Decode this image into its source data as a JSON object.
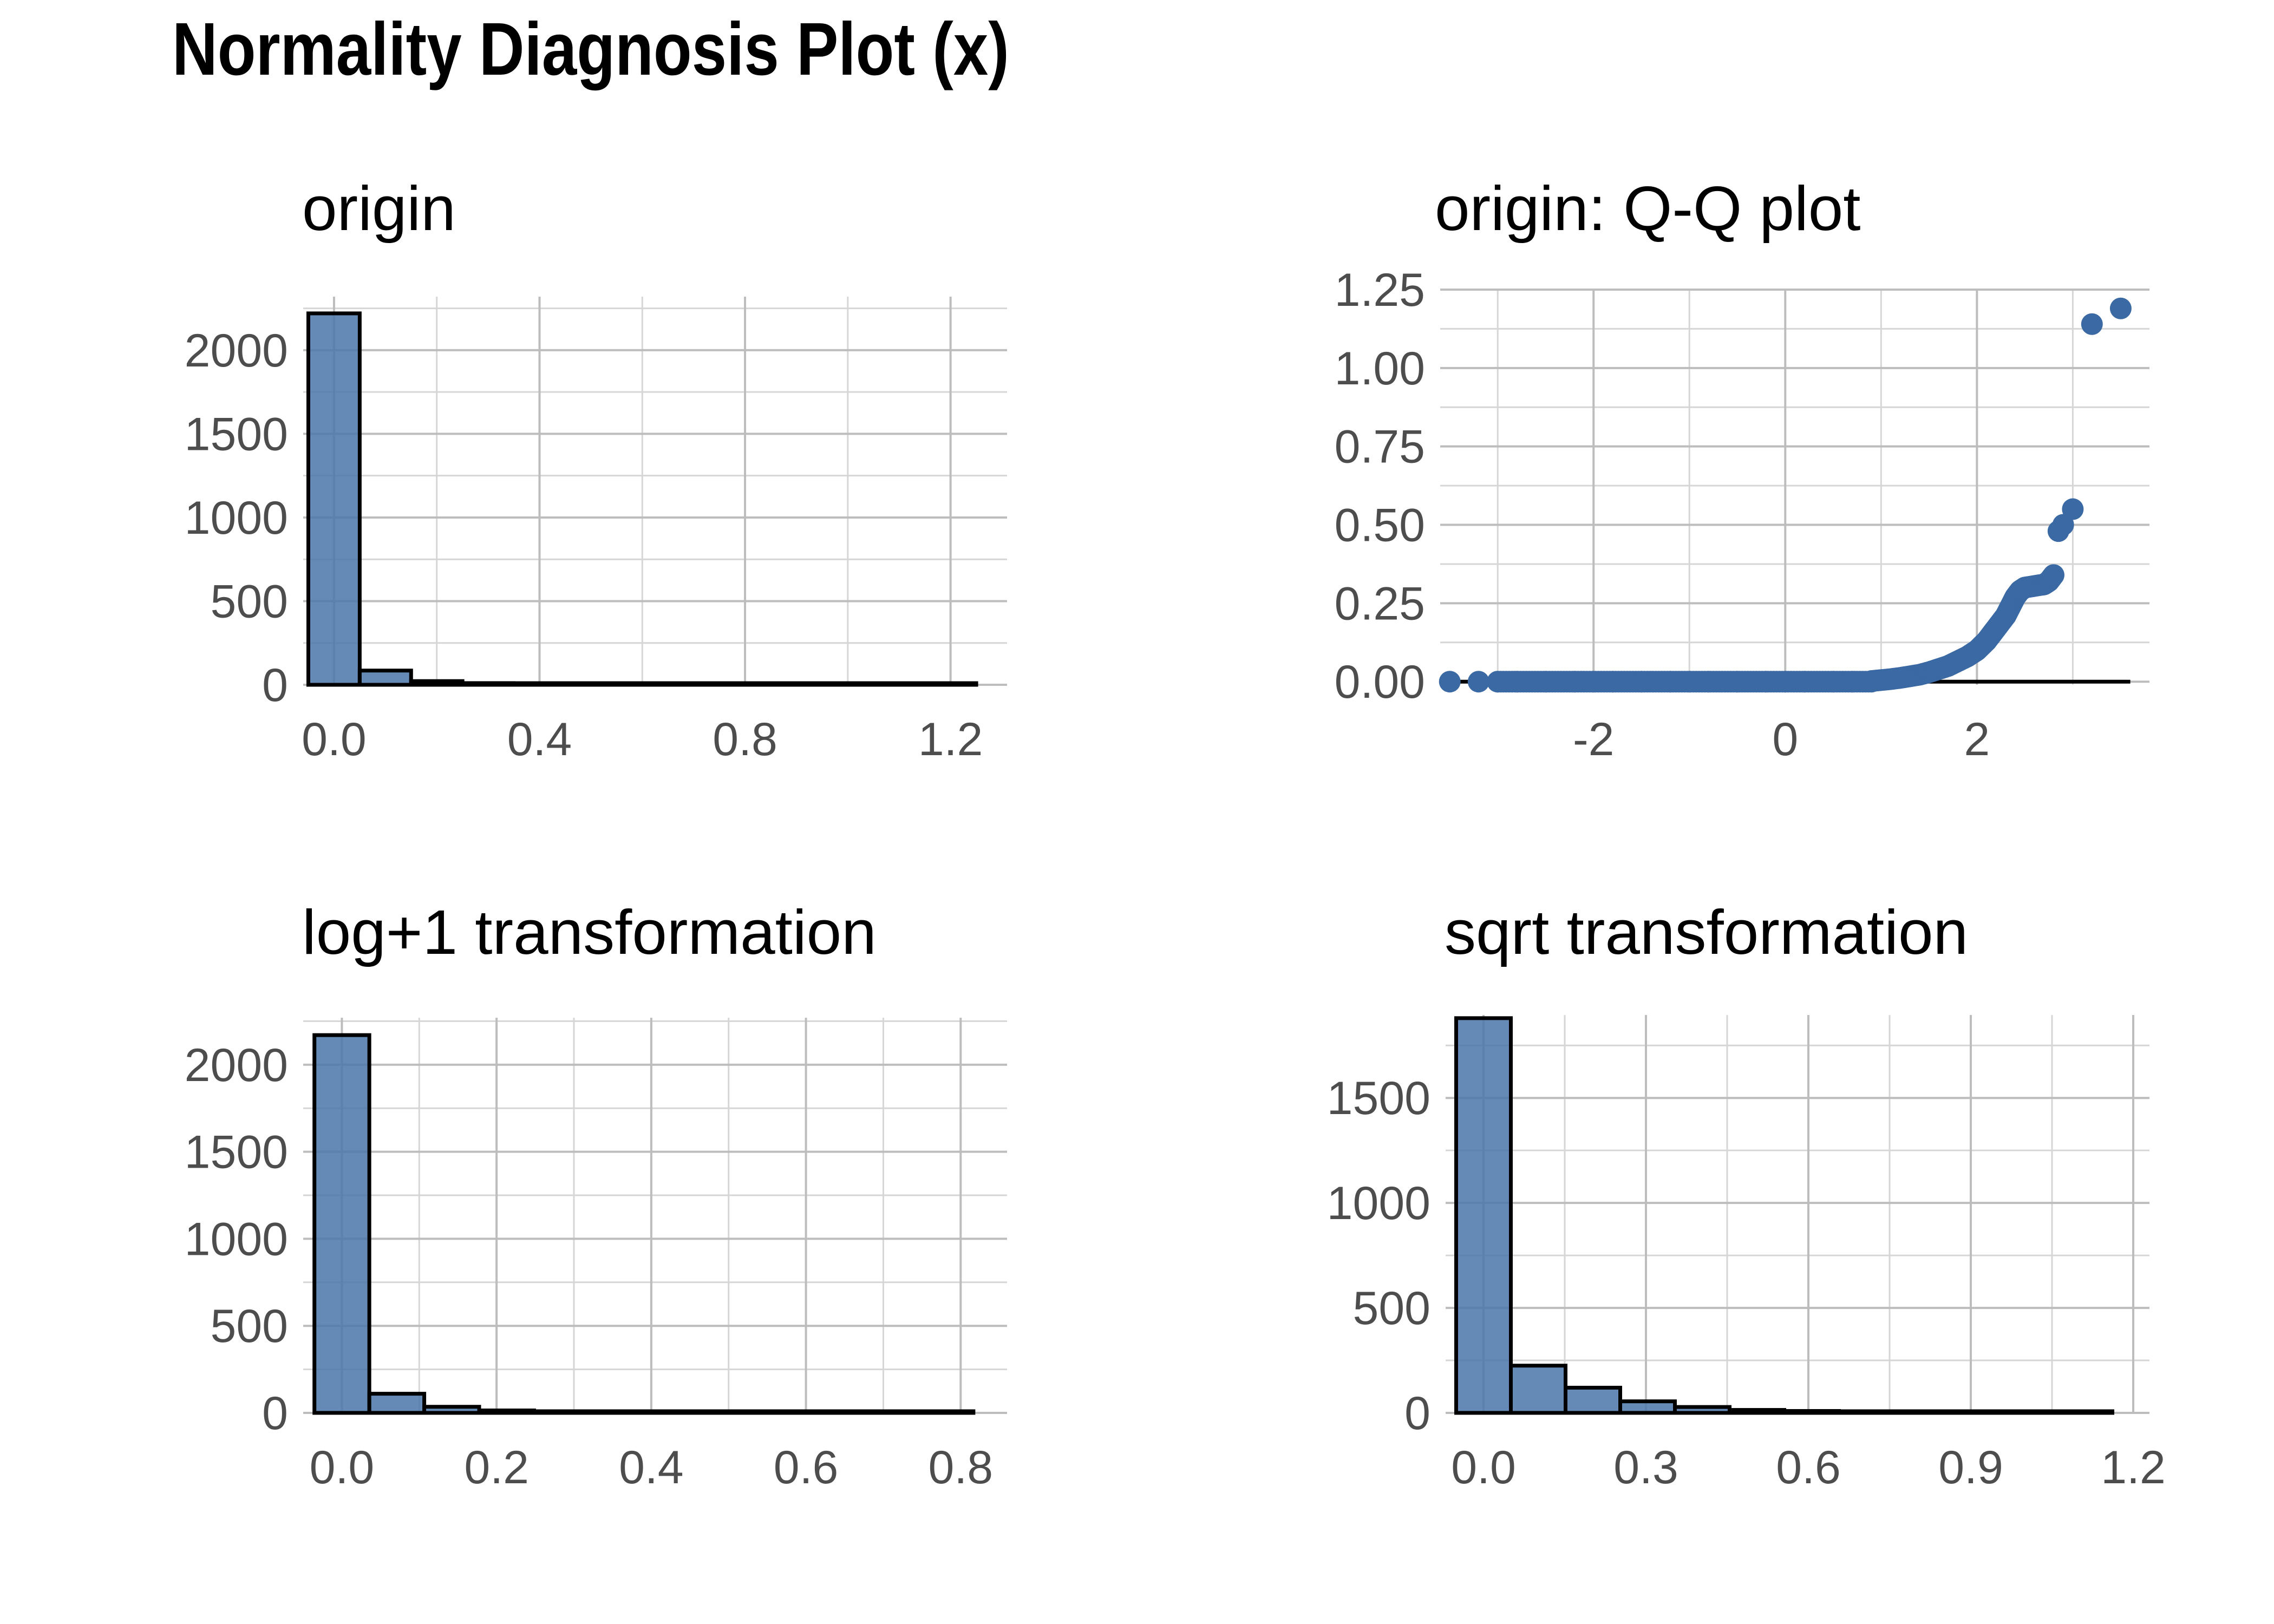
{
  "title": "Normality Diagnosis Plot (x)",
  "colors": {
    "fill": "#4a77a9",
    "outline": "#000000",
    "grid": "#bdbdbd",
    "point": "#3a69a3"
  },
  "chart_data": [
    {
      "type": "bar",
      "title": "origin",
      "xlabel": "",
      "ylabel": "",
      "binwidth": 0.1,
      "bin_centers": [
        0.0,
        0.1,
        0.2,
        0.3,
        0.4,
        0.5,
        0.6,
        0.7,
        0.8,
        0.9,
        1.0,
        1.1,
        1.2
      ],
      "values": [
        2220,
        85,
        22,
        10,
        4,
        3,
        2,
        1,
        1,
        1,
        0,
        1,
        2
      ],
      "xlim": [
        -0.06,
        1.31
      ],
      "ylim": [
        0,
        2320
      ],
      "x_ticks": [
        0.0,
        0.4,
        0.8,
        1.2
      ],
      "x_tick_labels": [
        "0.0",
        "0.4",
        "0.8",
        "1.2"
      ],
      "y_ticks": [
        0,
        500,
        1000,
        1500,
        2000
      ],
      "y_tick_labels": [
        "0",
        "500",
        "1000",
        "1500",
        "2000"
      ],
      "grid": true
    },
    {
      "type": "scatter",
      "title": "origin: Q-Q plot",
      "xlabel": "",
      "ylabel": "",
      "xlim": [
        -3.6,
        3.8
      ],
      "ylim": [
        -0.01,
        1.25
      ],
      "x_ticks": [
        -2,
        0,
        2
      ],
      "x_tick_labels": [
        "-2",
        "0",
        "2"
      ],
      "y_ticks": [
        0.0,
        0.25,
        0.5,
        0.75,
        1.0,
        1.25
      ],
      "y_tick_labels": [
        "0.00",
        "0.25",
        "0.50",
        "0.75",
        "1.00",
        "1.25"
      ],
      "x": [
        -3.5,
        -3.2,
        -3.0,
        -2.8,
        -2.5,
        -2.2,
        -2.0,
        -1.8,
        -1.5,
        -1.2,
        -1.0,
        -0.8,
        -0.5,
        -0.2,
        0.0,
        0.2,
        0.5,
        0.7,
        0.9,
        1.0,
        1.1,
        1.2,
        1.3,
        1.4,
        1.5,
        1.6,
        1.7,
        1.8,
        1.9,
        2.0,
        2.1,
        2.2,
        2.3,
        2.35,
        2.4,
        2.45,
        2.5,
        2.6,
        2.7,
        2.75,
        2.8,
        2.85,
        2.9,
        3.0,
        3.2,
        3.5
      ],
      "y": [
        0.0,
        0.0,
        0.0,
        0.0,
        0.0,
        0.0,
        0.0,
        0.0,
        0.0,
        0.0,
        0.0,
        0.0,
        0.0,
        0.0,
        0.0,
        0.0,
        0.0,
        0.0,
        0.002,
        0.005,
        0.008,
        0.012,
        0.017,
        0.022,
        0.03,
        0.04,
        0.05,
        0.065,
        0.08,
        0.1,
        0.13,
        0.17,
        0.21,
        0.24,
        0.27,
        0.29,
        0.3,
        0.305,
        0.31,
        0.32,
        0.34,
        0.48,
        0.5,
        0.55,
        1.14,
        1.19
      ],
      "grid": true
    },
    {
      "type": "bar",
      "title": "log+1 transformation",
      "xlabel": "",
      "ylabel": "",
      "binwidth": 0.071,
      "bin_centers": [
        0.0,
        0.071,
        0.142,
        0.213,
        0.284,
        0.355,
        0.426,
        0.497,
        0.568,
        0.639,
        0.71,
        0.781
      ],
      "values": [
        2170,
        110,
        35,
        14,
        8,
        4,
        3,
        2,
        2,
        1,
        1,
        3
      ],
      "xlim": [
        -0.05,
        0.86
      ],
      "ylim": [
        0,
        2270
      ],
      "x_ticks": [
        0.0,
        0.2,
        0.4,
        0.6,
        0.8
      ],
      "x_tick_labels": [
        "0.0",
        "0.2",
        "0.4",
        "0.6",
        "0.8"
      ],
      "y_ticks": [
        0,
        500,
        1000,
        1500,
        2000
      ],
      "y_tick_labels": [
        "0",
        "500",
        "1000",
        "1500",
        "2000"
      ],
      "grid": true
    },
    {
      "type": "bar",
      "title": "sqrt transformation",
      "xlabel": "",
      "ylabel": "",
      "binwidth": 0.101,
      "bin_centers": [
        0.0,
        0.101,
        0.202,
        0.303,
        0.404,
        0.505,
        0.606,
        0.707,
        0.808,
        0.909,
        1.01,
        1.111
      ],
      "values": [
        1880,
        225,
        120,
        55,
        28,
        14,
        9,
        5,
        3,
        2,
        1,
        3
      ],
      "xlim": [
        -0.07,
        1.23
      ],
      "ylim": [
        0,
        1895
      ],
      "x_ticks": [
        0.0,
        0.3,
        0.6,
        0.9,
        1.2
      ],
      "x_tick_labels": [
        "0.0",
        "0.3",
        "0.6",
        "0.9",
        "1.2"
      ],
      "y_ticks": [
        0,
        500,
        1000,
        1500
      ],
      "y_tick_labels": [
        "0",
        "500",
        "1000",
        "1500"
      ],
      "grid": true
    }
  ]
}
